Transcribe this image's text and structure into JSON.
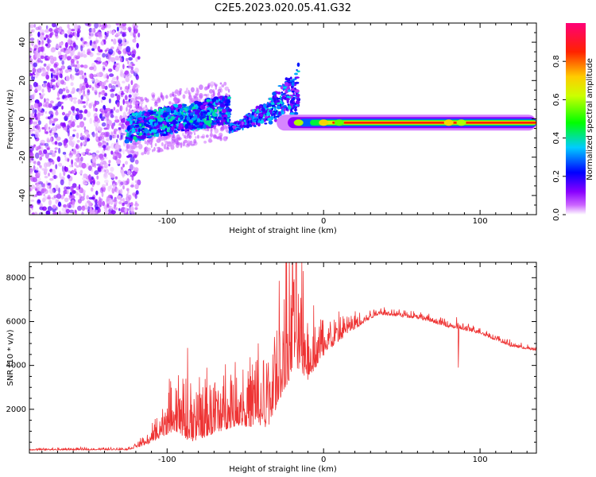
{
  "title": "C2E5.2023.020.05.41.G32",
  "colors": {
    "snr_line": "#ee3333",
    "frame": "#000000"
  },
  "chart_data": [
    {
      "type": "heatmap",
      "title": "C2E5.2023.020.05.41.G32",
      "xlabel": "Height of straight line (km)",
      "ylabel": "Frequency (Hz)",
      "xlim": [
        -188,
        136
      ],
      "ylim": [
        -50,
        50
      ],
      "xticks": [
        -100,
        0,
        100
      ],
      "yticks": [
        -40,
        -20,
        0,
        20,
        40
      ],
      "colorbar": {
        "label": "Normalized spectral amplitude",
        "range": [
          0,
          1
        ],
        "ticks": [
          "0.0",
          "0.2",
          "0.4",
          "0.6",
          "0.8"
        ],
        "colors": [
          "#ffffff",
          "#9900ff",
          "#0000ff",
          "#00ffff",
          "#00ff00",
          "#ffff00",
          "#ff0000",
          "#ff0099"
        ]
      },
      "features": [
        {
          "name": "noise",
          "x_range": [
            -188,
            -118
          ],
          "freq_range": [
            -50,
            50
          ],
          "amplitude": 0.15
        },
        {
          "name": "scattered",
          "x_range": [
            -126,
            -60
          ],
          "freq_center_start": -5,
          "freq_center_end": 5,
          "amplitude": 0.4
        },
        {
          "name": "branch",
          "x_range": [
            -60,
            -16
          ],
          "freq_center_start": -5,
          "freq_center_end": 27,
          "amplitude": 0.35
        },
        {
          "name": "carrier",
          "x_range": [
            -30,
            136
          ],
          "freq": -2,
          "amplitude": 0.85
        }
      ]
    },
    {
      "type": "line",
      "xlabel": "Height of straight line (km)",
      "ylabel": "SNR (10 * v/v)",
      "xlim": [
        -188,
        136
      ],
      "ylim": [
        0,
        8700
      ],
      "xticks": [
        -100,
        0,
        100
      ],
      "yticks": [
        2000,
        4000,
        6000,
        8000
      ],
      "series": [
        {
          "color": "#ee3333",
          "envelope": [
            {
              "x": -188,
              "base": 150,
              "amp": 60
            },
            {
              "x": -125,
              "base": 170,
              "amp": 80
            },
            {
              "x": -112,
              "base": 500,
              "amp": 300
            },
            {
              "x": -95,
              "base": 1500,
              "amp": 1600
            },
            {
              "x": -85,
              "base": 1000,
              "amp": 1800
            },
            {
              "x": -70,
              "base": 1400,
              "amp": 1800
            },
            {
              "x": -55,
              "base": 1800,
              "amp": 1800
            },
            {
              "x": -45,
              "base": 1800,
              "amp": 2200
            },
            {
              "x": -35,
              "base": 1900,
              "amp": 2600
            },
            {
              "x": -28,
              "base": 3500,
              "amp": 3500
            },
            {
              "x": -18,
              "base": 5000,
              "amp": 3800
            },
            {
              "x": -10,
              "base": 4000,
              "amp": 2200
            },
            {
              "x": 0,
              "base": 4800,
              "amp": 1200
            },
            {
              "x": 15,
              "base": 5600,
              "amp": 600
            },
            {
              "x": 35,
              "base": 6400,
              "amp": 250
            },
            {
              "x": 60,
              "base": 6200,
              "amp": 200
            },
            {
              "x": 80,
              "base": 5800,
              "amp": 200
            },
            {
              "x": 100,
              "base": 5500,
              "amp": 200
            },
            {
              "x": 120,
              "base": 4900,
              "amp": 150
            },
            {
              "x": 136,
              "base": 4700,
              "amp": 120
            }
          ],
          "dips": [
            {
              "x": 86,
              "y": 3900
            }
          ],
          "spikes": [
            {
              "x": -20,
              "y": 8650
            },
            {
              "x": -13,
              "y": 8300
            },
            {
              "x": -87,
              "y": 4800
            },
            {
              "x": 85,
              "y": 6200
            }
          ]
        }
      ]
    }
  ]
}
